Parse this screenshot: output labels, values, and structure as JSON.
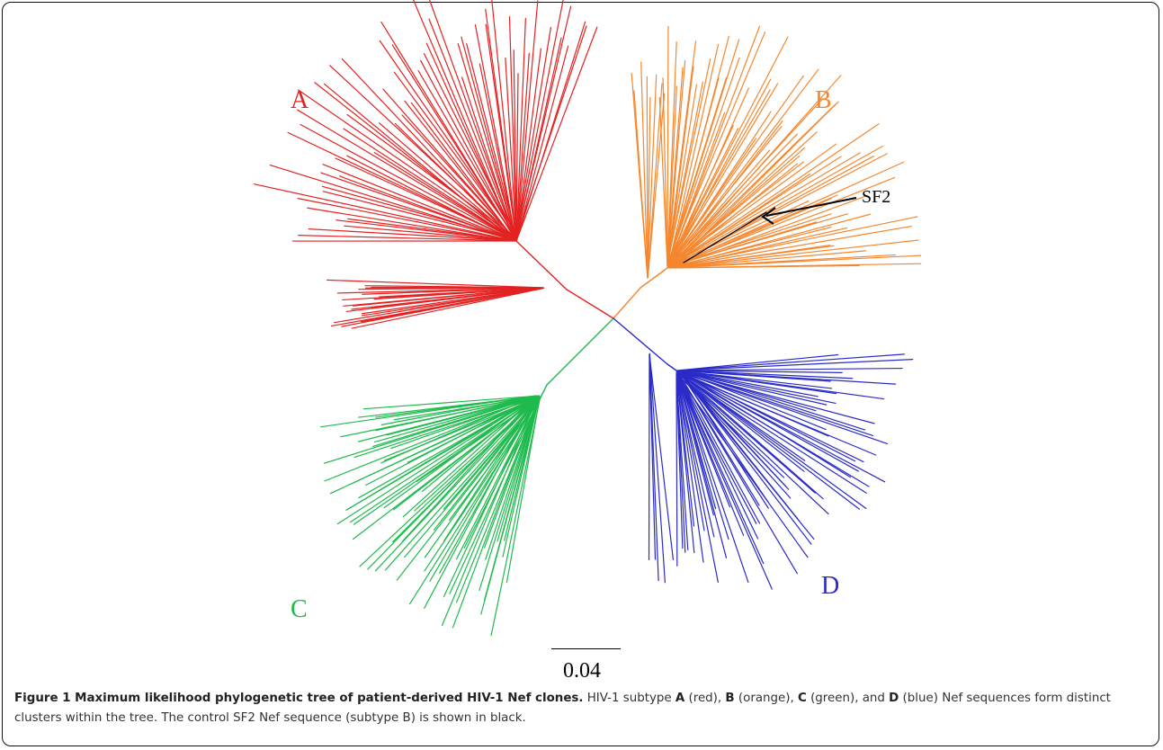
{
  "figure": {
    "clade_labels": [
      {
        "key": "A",
        "text": "A",
        "color": "#e32222"
      },
      {
        "key": "B",
        "text": "B",
        "color": "#f5872f"
      },
      {
        "key": "C",
        "text": "C",
        "color": "#1fba4d"
      },
      {
        "key": "D",
        "text": "D",
        "color": "#2a2bc8"
      }
    ],
    "annotation": "SF2",
    "scale_label": "0.04",
    "caption": {
      "title": "Figure 1 Maximum likelihood phylogenetic tree of patient-derived HIV-1 Nef clones.",
      "part1": " HIV-1 subtype ",
      "A": "A",
      "part2": " (red), ",
      "B": "B",
      "part3": " (orange), ",
      "C": "C",
      "part4": " (green), and ",
      "D": "D",
      "part5": " (blue) Nef sequences form distinct clusters within the tree. The control SF2 Nef sequence (subtype B) is shown in black."
    },
    "colors": {
      "A": "#e32222",
      "B": "#f5872f",
      "C": "#1fba4d",
      "D": "#2a2bc8",
      "control": "#000000"
    }
  }
}
